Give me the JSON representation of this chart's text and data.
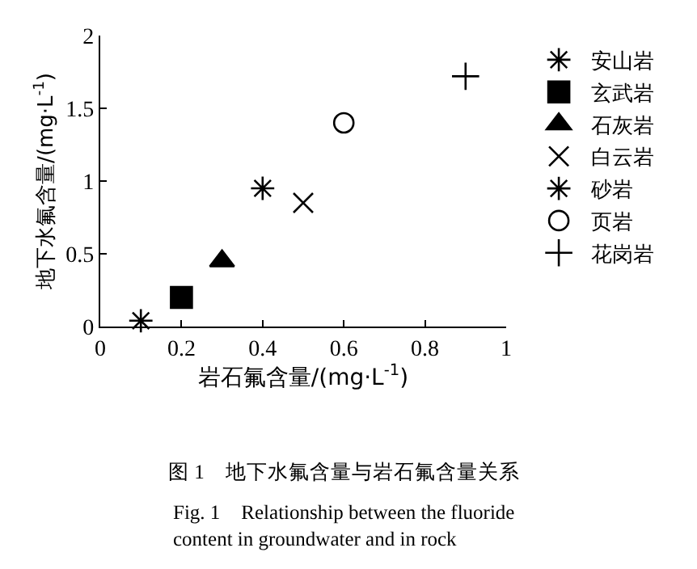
{
  "chart_data": {
    "type": "scatter",
    "xlabel": "岩石氟含量/(mg·L$^{-1}$)",
    "ylabel": "地下水氟含量/(mg·L$^{-1}$)",
    "xlim": [
      0,
      1
    ],
    "xticks": [
      0,
      0.2,
      0.4,
      0.6,
      0.8,
      1
    ],
    "ylim": [
      0,
      2
    ],
    "yticks": [
      0,
      0.5,
      1,
      1.5,
      2
    ],
    "grid": false,
    "legend": "right",
    "series": [
      {
        "name": "安山岩",
        "color": "#000000",
        "x": [
          0.1
        ],
        "values": [
          0.04
        ]
      },
      {
        "name": "玄武岩",
        "color": "#000000",
        "marker": "square",
        "x": [
          0.2
        ],
        "values": [
          0.2
        ]
      },
      {
        "name": "石灰岩",
        "color": "#000000",
        "marker": "triangle",
        "x": [
          0.3
        ],
        "values": [
          0.45
        ]
      },
      {
        "name": "白云岩",
        "color": "#000000",
        "marker": "cross",
        "x": [
          0.5
        ],
        "values": [
          0.85
        ]
      },
      {
        "name": "砂岩",
        "color": "#000000",
        "x": [
          0.4
        ],
        "values": [
          0.95
        ]
      },
      {
        "name": "页岩",
        "color": "#000000",
        "marker": "circle",
        "x": [
          0.6
        ],
        "values": [
          1.4
        ]
      },
      {
        "name": "花岗岩",
        "color": "#000000",
        "marker": "plus",
        "x": [
          0.9
        ],
        "values": [
          1.72
        ]
      }
    ],
    "annotations": [
      "图 1　地下水氟含量与岩石氟含量关系",
      "Fig. 1　Relationship between the fluoride content in groundwater and in rock"
    ]
  }
}
